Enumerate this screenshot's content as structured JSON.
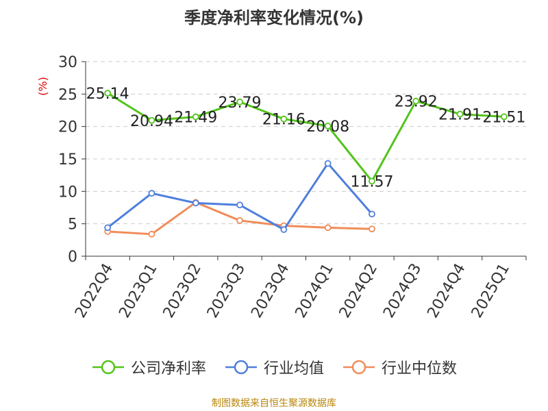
{
  "chart_data": {
    "type": "line",
    "title": "季度净利率变化情况(%)",
    "ylabel": "(%)",
    "categories": [
      "2022Q4",
      "2023Q1",
      "2023Q2",
      "2023Q3",
      "2023Q4",
      "2024Q1",
      "2024Q2",
      "2024Q3",
      "2024Q4",
      "2025Q1"
    ],
    "ylim": [
      0,
      30
    ],
    "yticks": [
      0,
      5,
      10,
      15,
      20,
      25,
      30
    ],
    "grid": true,
    "legend_position": "bottom",
    "series": [
      {
        "name": "公司净利率",
        "color": "#52c41a",
        "labels": true,
        "values": [
          25.14,
          20.94,
          21.49,
          23.79,
          21.16,
          20.08,
          11.57,
          23.92,
          21.91,
          21.51
        ]
      },
      {
        "name": "行业均值",
        "color": "#4e7fdc",
        "labels": false,
        "values": [
          4.4,
          9.7,
          8.2,
          7.9,
          4.1,
          14.3,
          6.5,
          null,
          null,
          null
        ]
      },
      {
        "name": "行业中位数",
        "color": "#f08c5a",
        "labels": false,
        "values": [
          3.8,
          3.4,
          8.3,
          5.5,
          4.7,
          4.4,
          4.2,
          null,
          null,
          null
        ]
      }
    ]
  },
  "footer": {
    "source": "制图数据来自恒生聚源数据库"
  }
}
